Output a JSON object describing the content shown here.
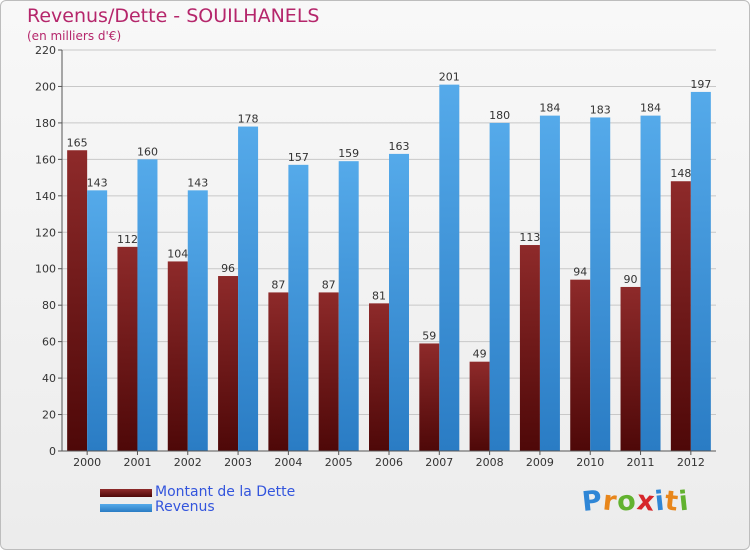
{
  "chart_data": {
    "type": "bar",
    "title": "Revenus/Dette - SOUILHANELS",
    "subtitle": "(en milliers d'€)",
    "categories": [
      "2000",
      "2001",
      "2002",
      "2003",
      "2004",
      "2005",
      "2006",
      "2007",
      "2008",
      "2009",
      "2010",
      "2011",
      "2012"
    ],
    "series": [
      {
        "name": "Montant de la Dette",
        "color": "#7a1c1c",
        "values": [
          165,
          112,
          104,
          96,
          87,
          87,
          81,
          59,
          49,
          113,
          94,
          90,
          148
        ]
      },
      {
        "name": "Revenus",
        "color": "#3d94d6",
        "values": [
          143,
          160,
          143,
          178,
          157,
          159,
          163,
          201,
          180,
          184,
          183,
          184,
          197
        ]
      }
    ],
    "ylim": [
      0,
      220
    ],
    "yticks": [
      0,
      20,
      40,
      60,
      80,
      100,
      120,
      140,
      160,
      180,
      200,
      220
    ],
    "grid": true,
    "legend": "bottom-left"
  },
  "logo": {
    "text": "Proxiti",
    "letters": [
      {
        "char": "P",
        "color": "#2f86d6"
      },
      {
        "char": "r",
        "color": "#e8861b"
      },
      {
        "char": "o",
        "color": "#62b22f"
      },
      {
        "char": "x",
        "color": "#d6262b"
      },
      {
        "char": "i",
        "color": "#2f86d6"
      },
      {
        "char": "t",
        "color": "#e8861b"
      },
      {
        "char": "i",
        "color": "#62b22f"
      }
    ]
  }
}
